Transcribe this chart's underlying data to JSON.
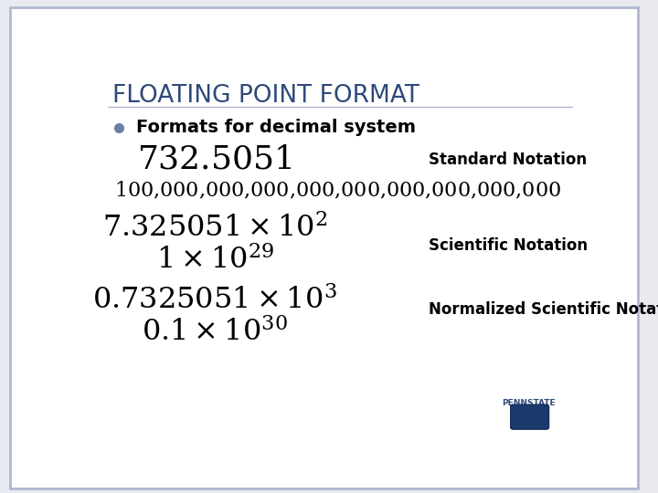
{
  "title_smallcaps": "FLOATING POINT FORMAT",
  "bullet_text": "Formats for decimal system",
  "bg_color": "#e8eaf0",
  "slide_bg": "#ffffff",
  "border_color": "#b0b8d0",
  "title_color": "#2d4a7a",
  "body_color": "#000000",
  "label_color": "#000000",
  "bullet_color": "#6a7fa8",
  "label_standard": "Standard Notation",
  "label_scientific": "Scientific Notation",
  "label_normalized": "Normalized Scientific Notation",
  "pennstate_text": "PENNSTATE"
}
